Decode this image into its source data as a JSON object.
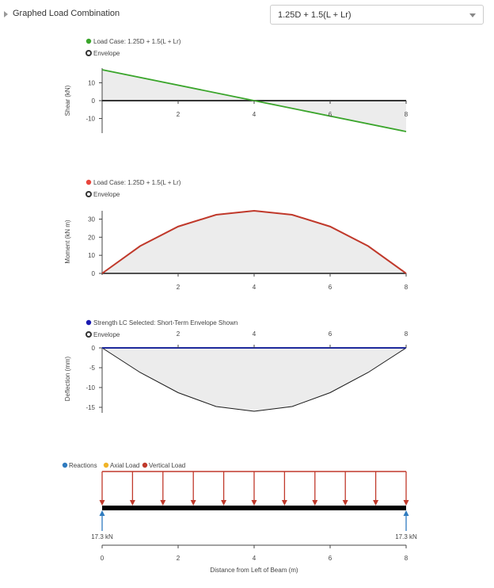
{
  "header": {
    "title": "Graphed Load Combination",
    "selected_combination": "1.25D + 1.5(L + Lr)"
  },
  "chart_data": [
    {
      "type": "area",
      "ylabel": "Shear (kN)",
      "xlim": [
        0,
        8
      ],
      "ylim": [
        -17.3,
        17.3
      ],
      "x_ticks": [
        "2",
        "4",
        "6",
        "8"
      ],
      "y_ticks": [
        "10",
        "0",
        "-10"
      ],
      "legend": [
        "Load Case: 1.25D + 1.5(L + Lr)",
        "Envelope"
      ],
      "colors": {
        "series": "#3aa52b",
        "legend_dot": "#3aa52b",
        "baseline": "#1a1a1a",
        "envelope_fill": "#ececec"
      },
      "series": {
        "name": "Load Case: 1.25D + 1.5(L + Lr)",
        "x": [
          0,
          8
        ],
        "y": [
          17.3,
          -17.3
        ]
      }
    },
    {
      "type": "area",
      "ylabel": "Moment (kN m)",
      "xlim": [
        0,
        8
      ],
      "ylim": [
        0,
        34.6
      ],
      "x_ticks": [
        "2",
        "4",
        "6",
        "8"
      ],
      "y_ticks": [
        "30",
        "20",
        "10",
        "0"
      ],
      "legend": [
        "Load Case: 1.25D + 1.5(L + Lr)",
        "Envelope"
      ],
      "colors": {
        "series": "#c0392b",
        "legend_dot": "#e8453c",
        "baseline": "#1a1a1a",
        "envelope_fill": "#ececec"
      },
      "series": {
        "name": "Load Case: 1.25D + 1.5(L + Lr)",
        "x": [
          0,
          1,
          2,
          3,
          4,
          5,
          6,
          7,
          8
        ],
        "y": [
          0,
          15.1,
          25.9,
          32.4,
          34.6,
          32.4,
          25.9,
          15.1,
          0
        ]
      }
    },
    {
      "type": "area",
      "ylabel": "Deflection (mm)",
      "xlim": [
        0,
        8
      ],
      "ylim": [
        -16,
        0
      ],
      "x_ticks": [
        "2",
        "4",
        "6",
        "8"
      ],
      "y_ticks": [
        "0",
        "-5",
        "-10",
        "-15"
      ],
      "legend": [
        "Strength LC Selected: Short-Term Envelope Shown",
        "Envelope"
      ],
      "colors": {
        "series": "#1f2a9c",
        "legend_dot": "#1a1ab0",
        "envelope": "#1a1a1a",
        "envelope_fill": "#ececec"
      },
      "series": {
        "name": "Strength LC Selected: Short-Term Envelope Shown",
        "x": [
          0,
          8
        ],
        "y": [
          0,
          0
        ]
      },
      "envelope": {
        "x": [
          0,
          1,
          2,
          3,
          4,
          5,
          6,
          7,
          8
        ],
        "y": [
          0,
          -6.2,
          -11.3,
          -14.8,
          -16,
          -14.8,
          -11.3,
          -6.2,
          0
        ]
      }
    },
    {
      "type": "diagram",
      "xlabel": "Distance from Left of Beam (m)",
      "xlim": [
        0,
        8
      ],
      "x_ticks": [
        "0",
        "2",
        "4",
        "6",
        "8"
      ],
      "legend": [
        {
          "label": "Reactions",
          "color": "#2f7bbf"
        },
        {
          "label": "Axial Load",
          "color": "#f0b429"
        },
        {
          "label": "Vertical Load",
          "color": "#c0392b"
        }
      ],
      "distributed_load_positions": [
        0,
        0.8,
        1.6,
        2.4,
        3.2,
        4,
        4.8,
        5.6,
        6.4,
        7.2,
        8
      ],
      "reactions": [
        {
          "x": 0,
          "label": "17.3 kN"
        },
        {
          "x": 8,
          "label": "17.3 kN"
        }
      ]
    }
  ]
}
